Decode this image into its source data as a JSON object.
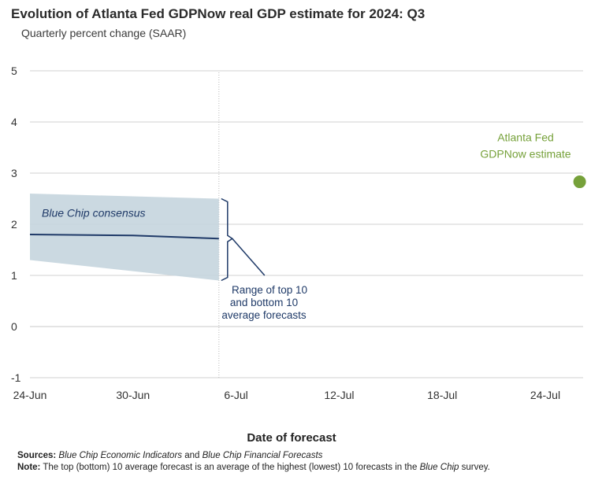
{
  "header": {
    "title": "Evolution of Atlanta Fed GDPNow real GDP estimate for 2024: Q3",
    "subtitle": "Quarterly percent change (SAAR)"
  },
  "chart_data": {
    "type": "line",
    "title": "Evolution of Atlanta Fed GDPNow real GDP estimate for 2024: Q3",
    "subtitle": "Quarterly percent change (SAAR)",
    "xlabel": "Date of forecast",
    "ylabel": "",
    "ylim": [
      -1,
      5
    ],
    "yticks": [
      -1,
      0,
      1,
      2,
      3,
      4,
      5
    ],
    "xlim": [
      "2024-06-24",
      "2024-07-28"
    ],
    "xticks": [
      {
        "date": "2024-06-24",
        "label": "24-Jun"
      },
      {
        "date": "2024-06-30",
        "label": "30-Jun"
      },
      {
        "date": "2024-07-06",
        "label": "6-Jul"
      },
      {
        "date": "2024-07-12",
        "label": "12-Jul"
      },
      {
        "date": "2024-07-18",
        "label": "18-Jul"
      },
      {
        "date": "2024-07-24",
        "label": "24-Jul"
      }
    ],
    "grid": "horizontal",
    "range_band": {
      "x": [
        "2024-06-24",
        "2024-07-05"
      ],
      "upper": [
        2.6,
        2.5
      ],
      "lower": [
        1.3,
        0.9
      ],
      "color": "#c5d5de"
    },
    "series": [
      {
        "name": "Blue Chip consensus",
        "x": [
          "2024-06-24",
          "2024-06-30",
          "2024-07-05"
        ],
        "values": [
          1.8,
          1.78,
          1.72
        ],
        "color": "#1f3a68"
      },
      {
        "name": "Atlanta Fed GDPNow estimate",
        "x": [
          "2024-07-26"
        ],
        "values": [
          2.83
        ],
        "color": "#76a13a"
      }
    ],
    "reference_line_x": "2024-07-05",
    "annotations": {
      "consensus_label": "Blue Chip consensus",
      "gdpnow_label_line1": "Atlanta Fed",
      "gdpnow_label_line2": "GDPNow estimate",
      "range_label_line1": "Range of top 10",
      "range_label_line2": "and bottom 10",
      "range_label_line3": "average forecasts"
    }
  },
  "footer": {
    "sources_label": "Sources:",
    "sources_text_1": "Blue Chip Economic Indicators",
    "sources_and": "and",
    "sources_text_2": "Blue Chip Financial Forecasts",
    "note_label": "Note:",
    "note_text_1": "The top (bottom) 10 average forecast is an average of the highest (lowest) 10 forecasts in the",
    "note_italic": "Blue Chip",
    "note_text_2": "survey."
  }
}
